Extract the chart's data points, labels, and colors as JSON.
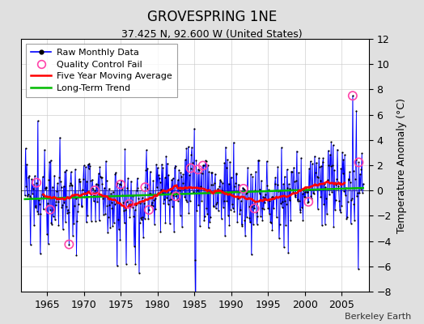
{
  "title": "GROVESPRING 1NE",
  "subtitle": "37.425 N, 92.600 W (United States)",
  "ylabel": "Temperature Anomaly (°C)",
  "attribution": "Berkeley Earth",
  "year_start": 1962.0,
  "year_end": 2008.5,
  "ylim": [
    -8,
    12
  ],
  "yticks": [
    -8,
    -6,
    -4,
    -2,
    0,
    2,
    4,
    6,
    8,
    10,
    12
  ],
  "xticks": [
    1965,
    1970,
    1975,
    1980,
    1985,
    1990,
    1995,
    2000,
    2005
  ],
  "raw_color": "#0000ff",
  "raw_dot_color": "#000000",
  "qc_fail_color": "#ff44aa",
  "moving_avg_color": "#ff0000",
  "trend_color": "#00bb00",
  "background_color": "#e0e0e0",
  "plot_bg_color": "#ffffff",
  "shading_color": "#6666ff",
  "title_fontsize": 12,
  "subtitle_fontsize": 9,
  "tick_fontsize": 9,
  "legend_fontsize": 8,
  "ylabel_fontsize": 9
}
